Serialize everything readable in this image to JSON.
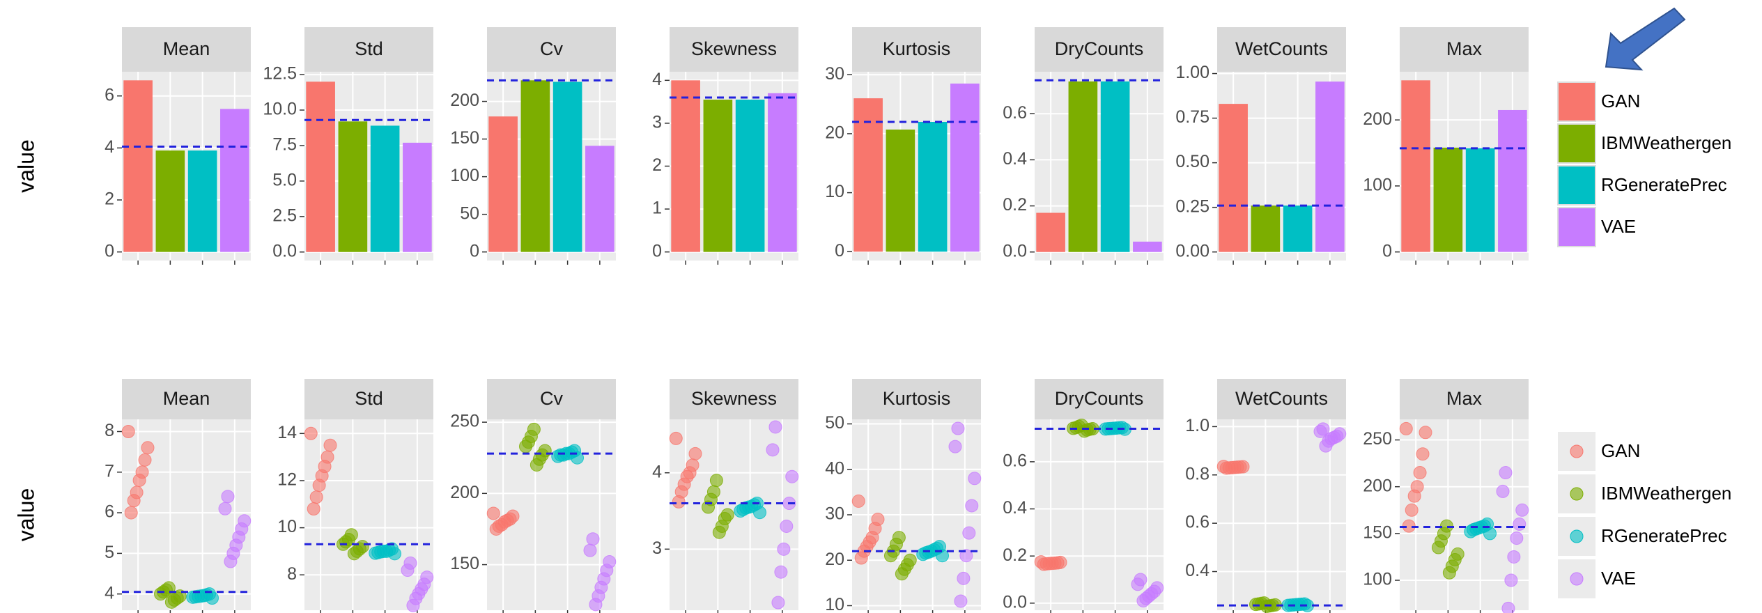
{
  "chart_data": [
    {
      "type": "bar",
      "ylabel": "value",
      "series": [
        {
          "name": "GAN",
          "color": "#f8766d"
        },
        {
          "name": "IBMWeathergen",
          "color": "#7cae00"
        },
        {
          "name": "RGeneratePrec",
          "color": "#00bfc4"
        },
        {
          "name": "VAE",
          "color": "#c77cff"
        }
      ],
      "panels": [
        {
          "title": "Mean",
          "values": [
            6.6,
            3.9,
            3.9,
            5.5
          ],
          "ref": 4.05,
          "ylim": [
            -0.33,
            6.93
          ],
          "yticks": [
            0,
            2,
            4,
            6
          ]
        },
        {
          "title": "Std",
          "values": [
            12.0,
            9.2,
            8.9,
            7.7
          ],
          "ref": 9.3,
          "ylim": [
            -0.6,
            12.7
          ],
          "yticks": [
            {
              "value": 0,
              "label": "0.0"
            },
            2.5,
            {
              "value": 5,
              "label": "5.0"
            },
            7.5,
            {
              "value": 10,
              "label": "10.0"
            },
            12.5
          ]
        },
        {
          "title": "Cv",
          "values": [
            180,
            228,
            226,
            141
          ],
          "ref": 228,
          "ylim": [
            -11.4,
            239.4
          ],
          "yticks": [
            0,
            50,
            100,
            150,
            200
          ]
        },
        {
          "title": "Skewness",
          "values": [
            4.0,
            3.55,
            3.55,
            3.7
          ],
          "ref": 3.6,
          "ylim": [
            -0.2,
            4.2
          ],
          "yticks": [
            0,
            1,
            2,
            3,
            4
          ]
        },
        {
          "title": "Kurtosis",
          "values": [
            26,
            20.7,
            22,
            28.5
          ],
          "ref": 22,
          "ylim": [
            -1.5,
            30.5
          ],
          "yticks": [
            0,
            10,
            20,
            30
          ]
        },
        {
          "title": "DryCounts",
          "values": [
            0.17,
            0.74,
            0.74,
            0.045
          ],
          "ref": 0.745,
          "ylim": [
            -0.037,
            0.782
          ],
          "yticks": [
            {
              "value": 0,
              "label": "0.0"
            },
            0.2,
            0.4,
            0.6
          ]
        },
        {
          "title": "WetCounts",
          "values": [
            0.83,
            0.26,
            0.26,
            0.955
          ],
          "ref": 0.26,
          "ylim": [
            -0.048,
            1.01
          ],
          "yticks": [
            {
              "value": 0,
              "label": "0.00"
            },
            0.25,
            {
              "value": 0.5,
              "label": "0.50"
            },
            0.75,
            {
              "value": 1,
              "label": "1.00"
            }
          ]
        },
        {
          "title": "Max",
          "values": [
            260,
            158,
            157,
            215
          ],
          "ref": 157,
          "ylim": [
            -13,
            273
          ],
          "yticks": [
            0,
            100,
            200
          ]
        }
      ]
    },
    {
      "type": "scatter",
      "ylabel": "value",
      "series": [
        {
          "name": "GAN",
          "color": "#f8766d"
        },
        {
          "name": "IBMWeathergen",
          "color": "#7cae00"
        },
        {
          "name": "RGeneratePrec",
          "color": "#00bfc4"
        },
        {
          "name": "VAE",
          "color": "#c77cff"
        }
      ],
      "panels": [
        {
          "title": "Mean",
          "ref": 4.05,
          "ylim": [
            3.6,
            8.3
          ],
          "yticks": [
            4,
            5,
            6,
            7,
            8
          ],
          "values": [
            [
              8.0,
              7.6,
              7.3,
              7.0,
              6.8,
              6.5,
              6.3,
              6.0
            ],
            [
              4.15,
              4.1,
              4.05,
              4.0,
              3.95,
              3.9,
              3.85,
              3.8
            ],
            [
              4.0,
              3.98,
              3.96,
              3.95,
              3.94,
              3.93,
              3.92,
              3.9
            ],
            [
              6.4,
              6.1,
              5.8,
              5.6,
              5.4,
              5.2,
              5.0,
              4.8
            ]
          ]
        },
        {
          "title": "Std",
          "ref": 9.3,
          "ylim": [
            6.5,
            14.6
          ],
          "yticks": [
            8,
            10,
            12,
            14
          ],
          "values": [
            [
              14.0,
              13.5,
              13.0,
              12.6,
              12.2,
              11.8,
              11.3,
              10.8
            ],
            [
              9.7,
              9.5,
              9.4,
              9.3,
              9.2,
              9.1,
              9.0,
              8.9
            ],
            [
              9.1,
              9.05,
              9.0,
              9.0,
              8.98,
              8.95,
              8.92,
              8.9
            ],
            [
              8.5,
              8.2,
              7.9,
              7.6,
              7.4,
              7.2,
              7.0,
              6.7
            ]
          ]
        },
        {
          "title": "Cv",
          "ref": 228,
          "ylim": [
            118,
            252
          ],
          "yticks": [
            150,
            200,
            250
          ],
          "values": [
            [
              186,
              184,
              182,
              181,
              180,
              178,
              177,
              175
            ],
            [
              245,
              240,
              236,
              233,
              230,
              227,
              224,
              220
            ],
            [
              230,
              229,
              228,
              228,
              227,
              227,
              226,
              225
            ],
            [
              168,
              160,
              152,
              146,
              140,
              134,
              128,
              122
            ]
          ]
        },
        {
          "title": "Skewness",
          "ref": 3.6,
          "ylim": [
            2.2,
            4.7
          ],
          "yticks": [
            3,
            4
          ],
          "values": [
            [
              4.45,
              4.25,
              4.1,
              4.0,
              3.95,
              3.85,
              3.75,
              3.62
            ],
            [
              3.9,
              3.75,
              3.65,
              3.55,
              3.45,
              3.4,
              3.3,
              3.22
            ],
            [
              3.6,
              3.58,
              3.56,
              3.55,
              3.54,
              3.52,
              3.5,
              3.48
            ],
            [
              4.6,
              4.3,
              3.95,
              3.6,
              3.3,
              3.0,
              2.7,
              2.3
            ]
          ]
        },
        {
          "title": "Kurtosis",
          "ref": 22,
          "ylim": [
            9,
            51
          ],
          "yticks": [
            10,
            20,
            30,
            40,
            50
          ],
          "values": [
            [
              33,
              29,
              27,
              25,
              24,
              23,
              22,
              20.5
            ],
            [
              25,
              23.5,
              22,
              21,
              20,
              19,
              18,
              17
            ],
            [
              23,
              22.6,
              22.3,
              22,
              21.8,
              21.6,
              21.3,
              21
            ],
            [
              49,
              45,
              38,
              32,
              26,
              21,
              16,
              11
            ]
          ]
        },
        {
          "title": "DryCounts",
          "ref": 0.74,
          "ylim": [
            -0.03,
            0.78
          ],
          "yticks": [
            {
              "value": 0,
              "label": "0.0"
            },
            0.2,
            0.4,
            0.6
          ],
          "values": [
            [
              0.175,
              0.173,
              0.171,
              0.17,
              0.169,
              0.168,
              0.167,
              0.165
            ],
            [
              0.755,
              0.75,
              0.745,
              0.742,
              0.74,
              0.738,
              0.735,
              0.73
            ],
            [
              0.745,
              0.744,
              0.743,
              0.742,
              0.741,
              0.74,
              0.739,
              0.738
            ],
            [
              0.1,
              0.08,
              0.065,
              0.05,
              0.04,
              0.03,
              0.02,
              0.01
            ]
          ]
        },
        {
          "title": "WetCounts",
          "ref": 0.26,
          "ylim": [
            0.24,
            1.03
          ],
          "yticks": [
            0.4,
            0.6,
            0.8,
            {
              "value": 1,
              "label": "1.0"
            }
          ],
          "values": [
            [
              0.835,
              0.834,
              0.833,
              0.832,
              0.831,
              0.83,
              0.829,
              0.828
            ],
            [
              0.27,
              0.268,
              0.266,
              0.264,
              0.262,
              0.26,
              0.258,
              0.256
            ],
            [
              0.266,
              0.265,
              0.264,
              0.263,
              0.262,
              0.261,
              0.26,
              0.259
            ],
            [
              0.99,
              0.98,
              0.97,
              0.96,
              0.955,
              0.95,
              0.94,
              0.92
            ]
          ]
        },
        {
          "title": "Max",
          "ref": 157,
          "ylim": [
            68,
            272
          ],
          "yticks": [
            100,
            150,
            200,
            250
          ],
          "values": [
            [
              262,
              258,
              235,
              215,
              200,
              190,
              175,
              158
            ],
            [
              158,
              150,
              142,
              135,
              128,
              122,
              115,
              108
            ],
            [
              160,
              158,
              157,
              156,
              155,
              154,
              152,
              150
            ],
            [
              215,
              195,
              175,
              160,
              145,
              125,
              100,
              70
            ]
          ]
        }
      ]
    }
  ]
}
